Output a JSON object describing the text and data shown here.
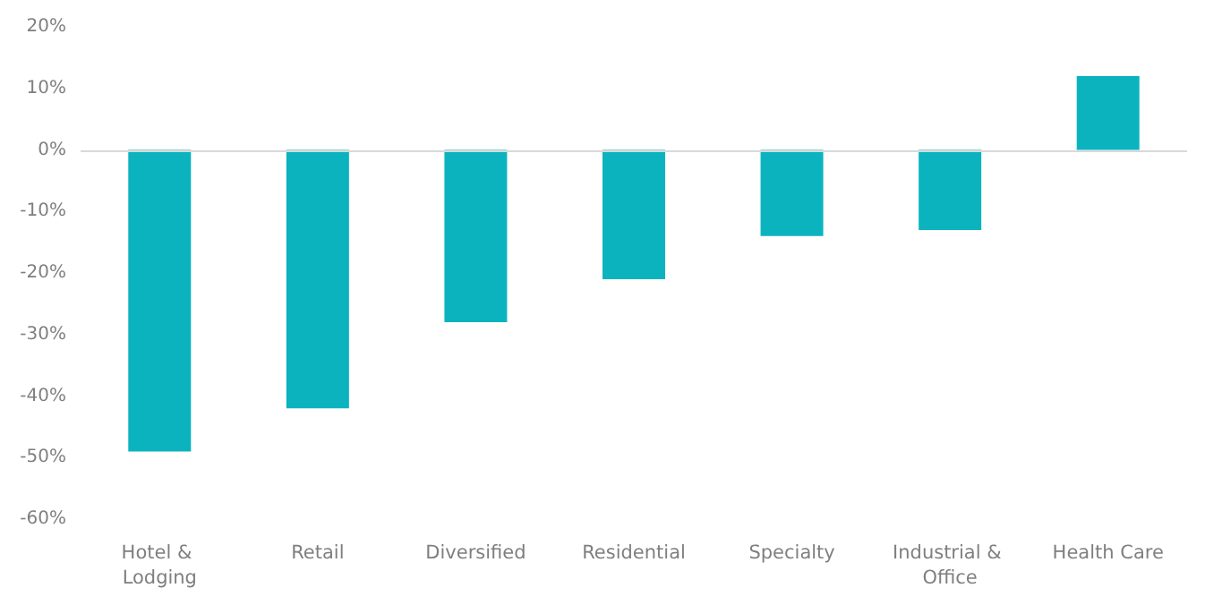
{
  "chart_data": {
    "type": "bar",
    "categories": [
      "Hotel & Lodging",
      "Retail",
      "Diversified",
      "Residential",
      "Specialty",
      "Industrial & Office",
      "Health Care"
    ],
    "values": [
      -49,
      -42,
      -28,
      -21,
      -14,
      -13,
      12
    ],
    "color": "#0bb3bf",
    "ylim": [
      -60,
      20
    ],
    "yticks": [
      {
        "value": -60,
        "label": "-60%"
      },
      {
        "value": -50,
        "label": "-50%"
      },
      {
        "value": -40,
        "label": "-40%"
      },
      {
        "value": -30,
        "label": "-30%"
      },
      {
        "value": -20,
        "label": "-20%"
      },
      {
        "value": -10,
        "label": "-10%"
      },
      {
        "value": 0,
        "label": "0%"
      },
      {
        "value": 10,
        "label": "10%"
      },
      {
        "value": 20,
        "label": "20%"
      }
    ],
    "grid": false,
    "ref_lines": [
      {
        "axis": "y",
        "value": 0,
        "color": "#d9d9d9"
      }
    ]
  }
}
